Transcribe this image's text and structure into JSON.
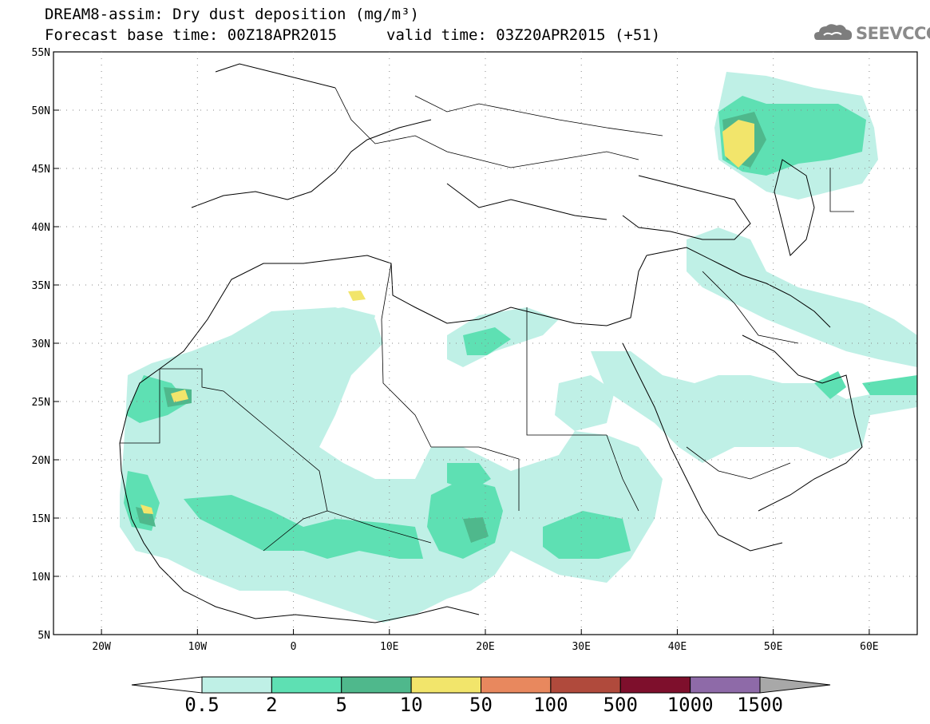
{
  "header": {
    "title": "DREAM8-assim: Dry dust deposition (mg/m³)",
    "base_time": "Forecast base time: 00Z18APR2015",
    "valid_time": "valid time: 03Z20APR2015 (+51)",
    "logo_text": "SEEVCCC",
    "logo_icon": "cloud-logo-icon"
  },
  "map": {
    "lon_range": [
      -25,
      65
    ],
    "lat_range": [
      5,
      55
    ],
    "lat_labels": [
      {
        "lat": 55,
        "text": "55N"
      },
      {
        "lat": 50,
        "text": "50N"
      },
      {
        "lat": 45,
        "text": "45N"
      },
      {
        "lat": 40,
        "text": "40N"
      },
      {
        "lat": 35,
        "text": "35N"
      },
      {
        "lat": 30,
        "text": "30N"
      },
      {
        "lat": 25,
        "text": "25N"
      },
      {
        "lat": 20,
        "text": "20N"
      },
      {
        "lat": 15,
        "text": "15N"
      },
      {
        "lat": 10,
        "text": "10N"
      },
      {
        "lat": 5,
        "text": "5N"
      }
    ],
    "lon_labels": [
      {
        "lon": -20,
        "text": "20W"
      },
      {
        "lon": -10,
        "text": "10W"
      },
      {
        "lon": 0,
        "text": "0"
      },
      {
        "lon": 10,
        "text": "10E"
      },
      {
        "lon": 20,
        "text": "20E"
      },
      {
        "lon": 30,
        "text": "30E"
      },
      {
        "lon": 40,
        "text": "40E"
      },
      {
        "lon": 50,
        "text": "50E"
      },
      {
        "lon": 60,
        "text": "60E"
      }
    ]
  },
  "colorbar": {
    "labels": [
      "0.5",
      "2",
      "5",
      "10",
      "50",
      "100",
      "500",
      "1000",
      "1500"
    ],
    "colors": [
      "#bff0e6",
      "#5ee0b3",
      "#4fb88c",
      "#f2e56b",
      "#e8885e",
      "#b04a3c",
      "#7e0f2c",
      "#8e6aa8"
    ],
    "under_color": "#ffffff",
    "over_color": "#a8a8a8"
  }
}
